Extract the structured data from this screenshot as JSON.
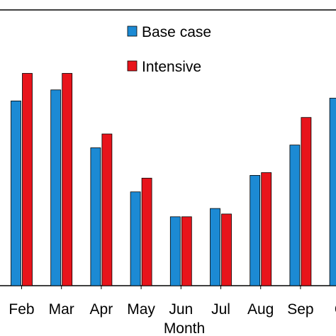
{
  "chart_data": {
    "type": "bar",
    "xlabel": "Month",
    "ylabel": "",
    "categories": [
      "Feb",
      "Mar",
      "Apr",
      "May",
      "Jun",
      "Jul",
      "Aug",
      "Sep",
      "O"
    ],
    "series": [
      {
        "name": "Base case",
        "color": "#1c8ad4",
        "values": [
          0.67,
          0.71,
          0.5,
          0.34,
          0.25,
          0.28,
          0.4,
          0.51,
          0.68
        ]
      },
      {
        "name": "Intensive",
        "color": "#e8141b",
        "values": [
          0.77,
          0.77,
          0.55,
          0.39,
          0.25,
          0.26,
          0.41,
          0.61,
          null
        ]
      }
    ],
    "ylim": [
      0,
      1
    ],
    "grid": false,
    "legend_position": "top-center"
  }
}
